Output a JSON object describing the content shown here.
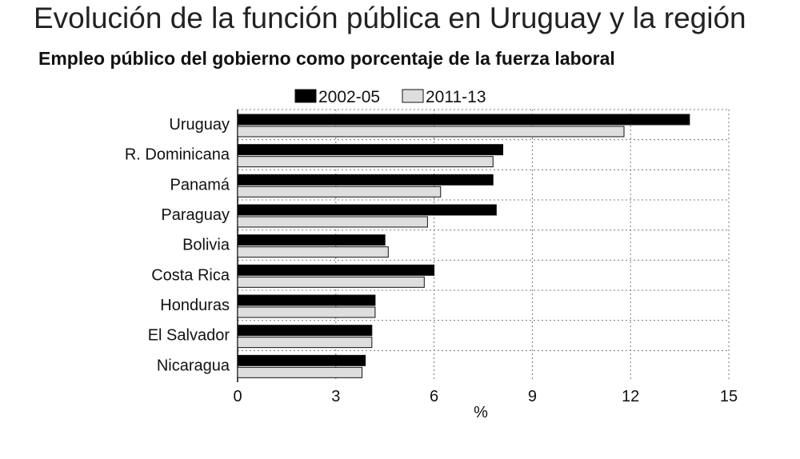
{
  "header": {
    "title": "Evolución de la función pública en Uruguay y la región",
    "subtitle": "Empleo público del gobierno como porcentaje de la fuerza laboral"
  },
  "chart_data": {
    "type": "bar",
    "orientation": "horizontal",
    "title": "Evolución de la función pública en Uruguay y la región",
    "subtitle": "Empleo público del gobierno como porcentaje de la fuerza laboral",
    "xlabel": "%",
    "ylabel": "",
    "xlim": [
      0,
      15
    ],
    "xticks": [
      "0",
      "3",
      "6",
      "9",
      "12",
      "15"
    ],
    "grid": true,
    "legend_placement": "top",
    "categories": [
      "Uruguay",
      "R. Dominicana",
      "Panamá",
      "Paraguay",
      "Bolivia",
      "Costa Rica",
      "Honduras",
      "El Salvador",
      "Nicaragua"
    ],
    "series": [
      {
        "name": "2002-05",
        "color": "#000000",
        "values": [
          13.8,
          8.1,
          7.8,
          7.9,
          4.5,
          6.0,
          4.2,
          4.1,
          3.9
        ]
      },
      {
        "name": "2011-13",
        "color": "#dedede",
        "values": [
          11.8,
          7.8,
          6.2,
          5.8,
          4.6,
          5.7,
          4.2,
          4.1,
          3.8
        ]
      }
    ]
  }
}
